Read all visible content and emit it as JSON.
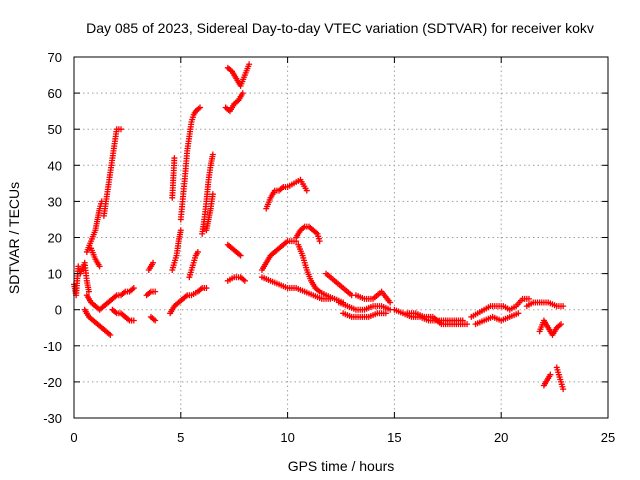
{
  "chart_data": {
    "type": "scatter",
    "title": "Day 085 of 2023, Sidereal Day-to-day VTEC variation (SDTVAR) for receiver kokv",
    "xlabel": "GPS time / hours",
    "ylabel": "SDTVAR / TECUs",
    "xlim": [
      0,
      25
    ],
    "ylim": [
      -30,
      70
    ],
    "xticks": [
      0,
      5,
      10,
      15,
      20,
      25
    ],
    "yticks": [
      -30,
      -20,
      -10,
      0,
      10,
      20,
      30,
      40,
      50,
      60,
      70
    ],
    "x_tick_labels": [
      "0",
      "5",
      "10",
      "15",
      "20",
      "25"
    ],
    "y_tick_labels": [
      "-30",
      "-20",
      "-10",
      "0",
      "10",
      "20",
      "30",
      "40",
      "50",
      "60",
      "70"
    ],
    "grid": true,
    "marker": "plus",
    "color": "#ff0000",
    "segments": [
      [
        [
          0.0,
          7
        ],
        [
          0.1,
          4
        ],
        [
          0.2,
          12
        ],
        [
          0.3,
          10
        ],
        [
          0.5,
          13
        ],
        [
          0.6,
          8
        ],
        [
          0.7,
          5
        ]
      ],
      [
        [
          0.5,
          0
        ],
        [
          0.7,
          -2
        ],
        [
          0.9,
          -3
        ],
        [
          1.1,
          -4
        ],
        [
          1.3,
          -5
        ],
        [
          1.5,
          -6
        ],
        [
          1.7,
          -7
        ]
      ],
      [
        [
          0.6,
          4
        ],
        [
          0.8,
          2
        ],
        [
          1.0,
          1
        ],
        [
          1.2,
          0
        ],
        [
          1.4,
          1
        ],
        [
          1.6,
          2
        ]
      ],
      [
        [
          0.6,
          16
        ],
        [
          0.8,
          19
        ],
        [
          1.0,
          22
        ],
        [
          1.1,
          25
        ],
        [
          1.2,
          28
        ],
        [
          1.3,
          30
        ]
      ],
      [
        [
          0.8,
          17
        ],
        [
          1.0,
          14
        ],
        [
          1.1,
          13
        ],
        [
          1.2,
          12
        ]
      ],
      [
        [
          1.4,
          26
        ],
        [
          1.5,
          30
        ],
        [
          1.6,
          34
        ],
        [
          1.7,
          38
        ],
        [
          1.8,
          42
        ],
        [
          1.9,
          46
        ],
        [
          2.0,
          50
        ],
        [
          2.2,
          50
        ]
      ],
      [
        [
          1.8,
          0
        ],
        [
          2.0,
          -1
        ],
        [
          2.2,
          -1
        ],
        [
          2.4,
          -2
        ],
        [
          2.6,
          -3
        ],
        [
          2.8,
          -3
        ]
      ],
      [
        [
          1.6,
          2
        ],
        [
          1.8,
          3
        ],
        [
          2.0,
          4
        ],
        [
          2.2,
          4
        ],
        [
          2.4,
          5
        ],
        [
          2.6,
          5
        ],
        [
          2.8,
          6
        ]
      ],
      [
        [
          3.5,
          11
        ],
        [
          3.7,
          13
        ]
      ],
      [
        [
          3.4,
          4
        ],
        [
          3.6,
          5
        ],
        [
          3.8,
          5
        ]
      ],
      [
        [
          3.6,
          -2
        ],
        [
          3.8,
          -3
        ]
      ],
      [
        [
          4.6,
          31
        ],
        [
          4.7,
          42
        ]
      ],
      [
        [
          4.6,
          11
        ],
        [
          4.8,
          15
        ],
        [
          4.9,
          19
        ],
        [
          5.0,
          22
        ]
      ],
      [
        [
          4.5,
          -1
        ],
        [
          4.7,
          1
        ],
        [
          4.9,
          2
        ],
        [
          5.1,
          3
        ],
        [
          5.3,
          4
        ],
        [
          5.5,
          4
        ],
        [
          5.8,
          5
        ],
        [
          6.0,
          6
        ],
        [
          6.2,
          6
        ]
      ],
      [
        [
          5.0,
          25
        ],
        [
          5.2,
          37
        ],
        [
          5.3,
          44
        ],
        [
          5.4,
          48
        ],
        [
          5.5,
          52
        ],
        [
          5.6,
          54
        ],
        [
          5.7,
          55
        ],
        [
          5.9,
          56
        ]
      ],
      [
        [
          5.4,
          9
        ],
        [
          5.5,
          11
        ],
        [
          5.6,
          13
        ],
        [
          5.7,
          15
        ],
        [
          5.8,
          16
        ]
      ],
      [
        [
          6.0,
          21
        ],
        [
          6.1,
          25
        ],
        [
          6.2,
          30
        ],
        [
          6.3,
          36
        ],
        [
          6.4,
          40
        ],
        [
          6.5,
          43
        ]
      ],
      [
        [
          6.2,
          22
        ],
        [
          6.3,
          25
        ],
        [
          6.4,
          28
        ],
        [
          6.5,
          32
        ]
      ],
      [
        [
          7.2,
          67
        ],
        [
          7.4,
          66
        ],
        [
          7.6,
          64
        ],
        [
          7.8,
          62
        ],
        [
          8.0,
          65
        ],
        [
          8.2,
          68
        ]
      ],
      [
        [
          7.1,
          56
        ],
        [
          7.3,
          55
        ],
        [
          7.5,
          57
        ],
        [
          7.7,
          58
        ],
        [
          7.9,
          60
        ]
      ],
      [
        [
          7.2,
          18
        ],
        [
          7.4,
          17
        ],
        [
          7.6,
          16
        ],
        [
          7.8,
          15
        ]
      ],
      [
        [
          7.2,
          8
        ],
        [
          7.5,
          9
        ],
        [
          7.8,
          9
        ],
        [
          8.0,
          8
        ]
      ],
      [
        [
          9.0,
          28
        ],
        [
          9.2,
          31
        ],
        [
          9.4,
          33
        ],
        [
          9.6,
          33
        ],
        [
          9.8,
          34
        ],
        [
          10.0,
          34
        ],
        [
          10.3,
          35
        ],
        [
          10.6,
          36
        ],
        [
          10.9,
          33
        ]
      ],
      [
        [
          8.8,
          11
        ],
        [
          9.0,
          13
        ],
        [
          9.2,
          15
        ],
        [
          9.4,
          16
        ],
        [
          9.6,
          17
        ],
        [
          9.8,
          18
        ],
        [
          10.0,
          19
        ],
        [
          10.2,
          19
        ],
        [
          10.4,
          19
        ]
      ],
      [
        [
          10.4,
          20
        ],
        [
          10.6,
          22
        ],
        [
          10.8,
          23
        ],
        [
          11.0,
          23
        ],
        [
          11.2,
          22
        ],
        [
          11.4,
          21
        ],
        [
          11.5,
          19
        ]
      ],
      [
        [
          10.5,
          18
        ],
        [
          10.7,
          15
        ],
        [
          10.9,
          11
        ],
        [
          11.1,
          8
        ],
        [
          11.3,
          6
        ],
        [
          11.5,
          5
        ],
        [
          11.8,
          4
        ],
        [
          12.2,
          3
        ],
        [
          12.6,
          2
        ]
      ],
      [
        [
          8.8,
          9
        ],
        [
          9.2,
          8
        ],
        [
          9.6,
          7
        ],
        [
          10.0,
          6
        ],
        [
          10.4,
          6
        ],
        [
          10.8,
          5
        ],
        [
          11.2,
          4
        ],
        [
          11.6,
          3
        ],
        [
          12.0,
          3
        ]
      ],
      [
        [
          11.8,
          10
        ],
        [
          12.2,
          8
        ],
        [
          12.6,
          6
        ],
        [
          13.0,
          4
        ]
      ],
      [
        [
          12.4,
          2
        ],
        [
          12.8,
          1
        ],
        [
          13.2,
          0
        ],
        [
          13.6,
          0
        ],
        [
          14.0,
          1
        ],
        [
          14.4,
          1
        ],
        [
          14.8,
          0
        ]
      ],
      [
        [
          12.6,
          -1
        ],
        [
          13.0,
          -2
        ],
        [
          13.4,
          -2
        ],
        [
          13.8,
          -2
        ],
        [
          14.2,
          -1
        ],
        [
          14.6,
          -1
        ]
      ],
      [
        [
          13.2,
          4
        ],
        [
          13.6,
          3
        ],
        [
          14.0,
          3
        ],
        [
          14.4,
          5
        ],
        [
          14.8,
          2
        ]
      ],
      [
        [
          15.0,
          0
        ],
        [
          15.4,
          -1
        ],
        [
          15.8,
          -2
        ],
        [
          16.2,
          -2
        ],
        [
          16.6,
          -3
        ],
        [
          17.0,
          -3
        ],
        [
          17.4,
          -3
        ],
        [
          17.8,
          -3
        ],
        [
          18.2,
          -3
        ]
      ],
      [
        [
          15.6,
          -1
        ],
        [
          16.0,
          -1
        ],
        [
          16.4,
          -2
        ],
        [
          16.8,
          -2
        ],
        [
          17.2,
          -4
        ],
        [
          17.6,
          -4
        ],
        [
          18.0,
          -4
        ],
        [
          18.4,
          -4
        ]
      ],
      [
        [
          18.6,
          -2
        ],
        [
          18.9,
          -1
        ],
        [
          19.2,
          0
        ],
        [
          19.5,
          1
        ],
        [
          19.8,
          1
        ],
        [
          20.1,
          1
        ],
        [
          20.4,
          0
        ],
        [
          20.7,
          1
        ],
        [
          21.0,
          3
        ],
        [
          21.3,
          3
        ]
      ],
      [
        [
          18.8,
          -4
        ],
        [
          19.2,
          -3
        ],
        [
          19.6,
          -2
        ],
        [
          20.0,
          -3
        ],
        [
          20.4,
          -2
        ],
        [
          20.8,
          -1
        ]
      ],
      [
        [
          21.2,
          1
        ],
        [
          21.5,
          2
        ],
        [
          21.8,
          2
        ],
        [
          22.2,
          2
        ],
        [
          22.6,
          1
        ],
        [
          22.9,
          1
        ]
      ],
      [
        [
          21.8,
          -6
        ],
        [
          22.0,
          -3
        ],
        [
          22.2,
          -5
        ],
        [
          22.4,
          -7
        ],
        [
          22.6,
          -5
        ],
        [
          22.8,
          -4
        ]
      ],
      [
        [
          22.0,
          -21
        ],
        [
          22.1,
          -20
        ],
        [
          22.2,
          -19
        ],
        [
          22.3,
          -18
        ]
      ],
      [
        [
          22.6,
          -16
        ],
        [
          22.7,
          -18
        ],
        [
          22.8,
          -20
        ],
        [
          22.9,
          -22
        ]
      ]
    ]
  }
}
